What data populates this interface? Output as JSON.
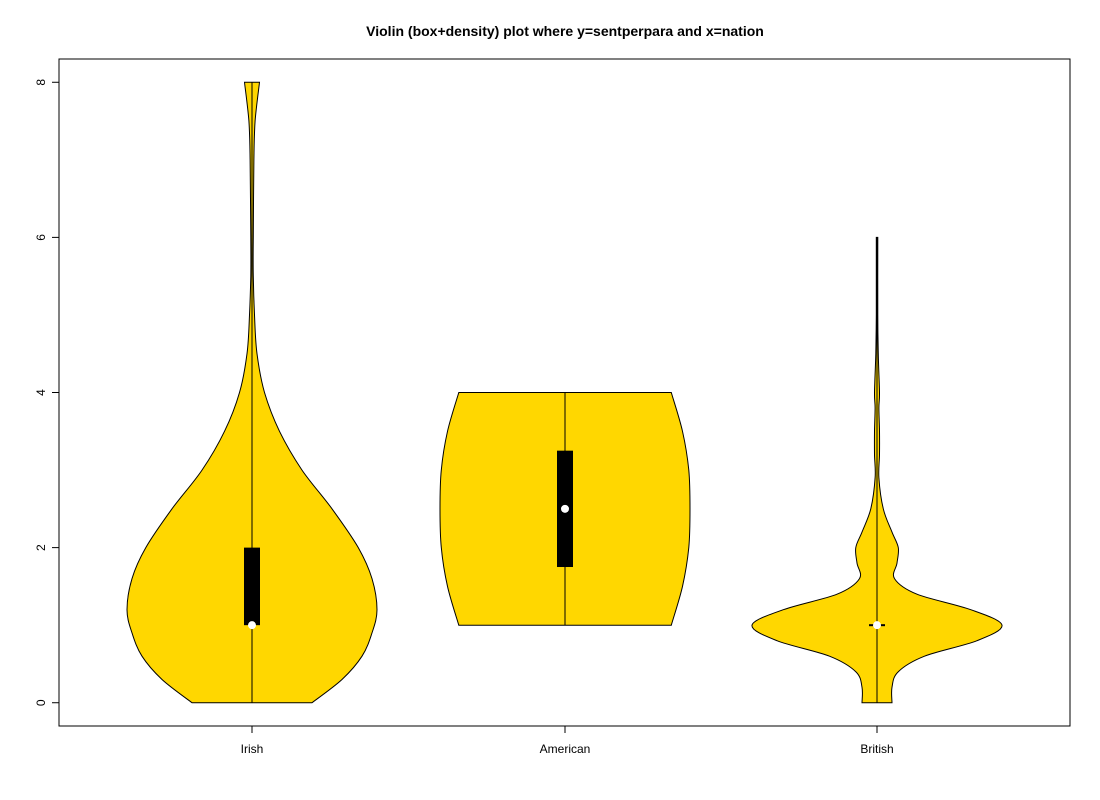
{
  "chart_data": {
    "type": "violin",
    "title": "Violin (box+density) plot where y=sentperpara and x=nation",
    "xlabel": "",
    "ylabel": "",
    "categories": [
      "Irish",
      "American",
      "British"
    ],
    "ylim": [
      -0.3,
      8.3
    ],
    "yticks": [
      0,
      2,
      4,
      6,
      8
    ],
    "fill_color": "#FFD700",
    "grid": false,
    "violins": [
      {
        "category": "Irish",
        "min": 0,
        "q1": 1,
        "median": 1,
        "q3": 2,
        "whisker_low": 0,
        "whisker_high": 3.5,
        "max": 8,
        "density": [
          [
            0,
            0.48
          ],
          [
            0.3,
            0.72
          ],
          [
            0.6,
            0.88
          ],
          [
            0.9,
            0.96
          ],
          [
            1.2,
            1.0
          ],
          [
            1.6,
            0.96
          ],
          [
            2.0,
            0.85
          ],
          [
            2.5,
            0.64
          ],
          [
            3.0,
            0.4
          ],
          [
            3.5,
            0.22
          ],
          [
            4.0,
            0.1
          ],
          [
            4.5,
            0.04
          ],
          [
            5.0,
            0.02
          ],
          [
            5.5,
            0.01
          ],
          [
            6.0,
            0.01
          ],
          [
            7.0,
            0.015
          ],
          [
            7.5,
            0.025
          ],
          [
            8.0,
            0.06
          ]
        ]
      },
      {
        "category": "American",
        "min": 1,
        "q1": 1.75,
        "median": 2.5,
        "q3": 3.25,
        "whisker_low": 1,
        "whisker_high": 4,
        "max": 4,
        "density": [
          [
            1.0,
            0.85
          ],
          [
            1.5,
            0.94
          ],
          [
            2.0,
            0.99
          ],
          [
            2.5,
            1.0
          ],
          [
            3.0,
            0.99
          ],
          [
            3.5,
            0.94
          ],
          [
            4.0,
            0.85
          ]
        ]
      },
      {
        "category": "British",
        "min": 0,
        "q1": 1,
        "median": 1,
        "q3": 1,
        "whisker_low": 1,
        "whisker_high": 1,
        "max": 6,
        "density": [
          [
            0,
            0.12
          ],
          [
            0.2,
            0.12
          ],
          [
            0.4,
            0.17
          ],
          [
            0.6,
            0.38
          ],
          [
            0.8,
            0.8
          ],
          [
            1.0,
            1.0
          ],
          [
            1.2,
            0.75
          ],
          [
            1.4,
            0.32
          ],
          [
            1.6,
            0.14
          ],
          [
            1.8,
            0.16
          ],
          [
            2.0,
            0.17
          ],
          [
            2.2,
            0.12
          ],
          [
            2.5,
            0.05
          ],
          [
            2.9,
            0.015
          ],
          [
            3.2,
            0.02
          ],
          [
            3.5,
            0.02
          ],
          [
            3.8,
            0.015
          ],
          [
            4.0,
            0.02
          ],
          [
            4.5,
            0.01
          ],
          [
            5.0,
            0.006
          ],
          [
            6.0,
            0.006
          ]
        ]
      }
    ]
  }
}
